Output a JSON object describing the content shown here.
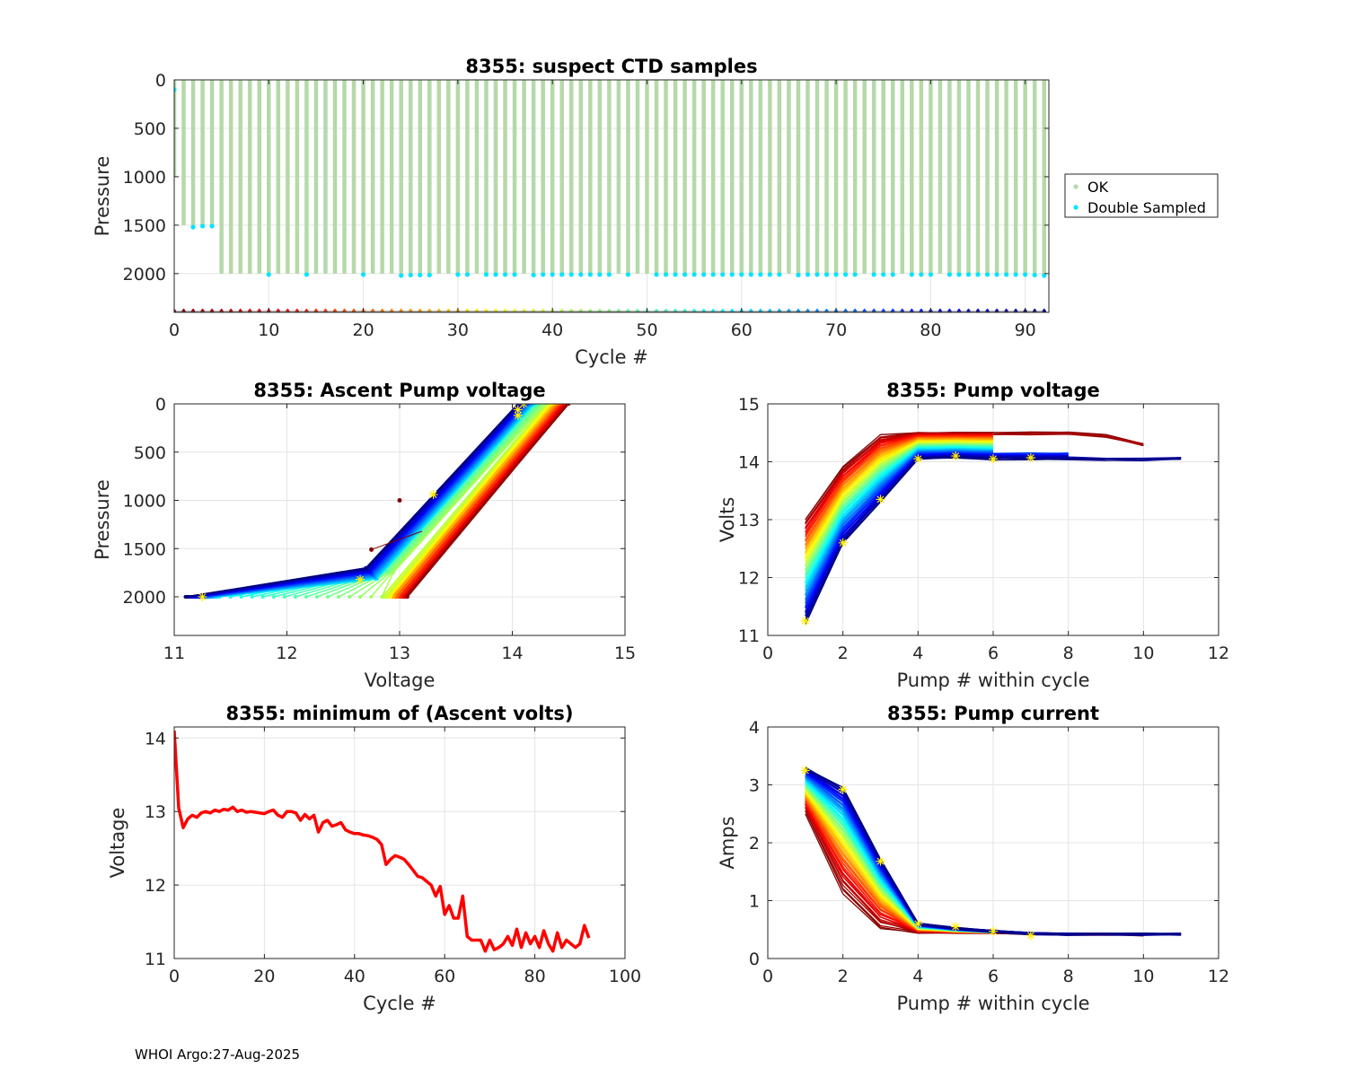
{
  "footer": "WHOI Argo:27-Aug-2025",
  "colors": {
    "ok": "#b5d9a8",
    "double": "#00e5ff",
    "marker": "#ffee00",
    "min_volts": "#ff0000",
    "grid": "#e4e4e4"
  },
  "chart_data": [
    {
      "id": "ctd",
      "type": "scatter",
      "title": "8355: suspect CTD samples",
      "xlabel": "Cycle #",
      "ylabel": "Pressure",
      "xlim": [
        0,
        92.5
      ],
      "ylim": [
        0,
        2400
      ],
      "y_reversed": true,
      "xticks": [
        0,
        10,
        20,
        30,
        40,
        50,
        60,
        70,
        80,
        90
      ],
      "yticks": [
        0,
        500,
        1000,
        1500,
        2000
      ],
      "legend": {
        "position": "right",
        "entries": [
          "OK",
          "Double Sampled"
        ]
      },
      "series": [
        {
          "name": "OK",
          "description": "profile depths per cycle",
          "profile_max_pressure": {
            "cycle_0": 1000,
            "cycles_1_to_4": 1500,
            "cycles_5_to_92": 2000
          }
        },
        {
          "name": "Double Sampled",
          "points": [
            [
              0,
              100
            ],
            [
              2,
              1520
            ],
            [
              3,
              1510
            ],
            [
              4,
              1510
            ],
            [
              10,
              2010
            ],
            [
              14,
              2010
            ],
            [
              20,
              2010
            ],
            [
              24,
              2020
            ],
            [
              25,
              2015
            ],
            [
              26,
              2015
            ],
            [
              27,
              2015
            ],
            [
              30,
              2010
            ],
            [
              31,
              2010
            ],
            [
              33,
              2010
            ],
            [
              34,
              2010
            ],
            [
              35,
              2010
            ],
            [
              36,
              2010
            ],
            [
              38,
              2015
            ],
            [
              39,
              2010
            ],
            [
              40,
              2010
            ],
            [
              41,
              2010
            ],
            [
              42,
              2010
            ],
            [
              43,
              2010
            ],
            [
              44,
              2010
            ],
            [
              45,
              2010
            ],
            [
              46,
              2010
            ],
            [
              48,
              2010
            ],
            [
              51,
              2010
            ],
            [
              52,
              2010
            ],
            [
              53,
              2010
            ],
            [
              54,
              2010
            ],
            [
              55,
              2010
            ],
            [
              56,
              2010
            ],
            [
              57,
              2010
            ],
            [
              58,
              2010
            ],
            [
              59,
              2010
            ],
            [
              60,
              2010
            ],
            [
              61,
              2010
            ],
            [
              62,
              2010
            ],
            [
              63,
              2010
            ],
            [
              64,
              2010
            ],
            [
              66,
              2015
            ],
            [
              67,
              2010
            ],
            [
              68,
              2010
            ],
            [
              69,
              2010
            ],
            [
              70,
              2010
            ],
            [
              71,
              2010
            ],
            [
              72,
              2010
            ],
            [
              74,
              2010
            ],
            [
              75,
              2010
            ],
            [
              76,
              2010
            ],
            [
              78,
              2010
            ],
            [
              79,
              2010
            ],
            [
              80,
              2010
            ],
            [
              82,
              2010
            ],
            [
              83,
              2010
            ],
            [
              84,
              2010
            ],
            [
              85,
              2010
            ],
            [
              86,
              2010
            ],
            [
              87,
              2010
            ],
            [
              88,
              2010
            ],
            [
              89,
              2010
            ],
            [
              90,
              2010
            ],
            [
              91,
              2015
            ],
            [
              92,
              2020
            ]
          ]
        }
      ],
      "cycle_markers_pressure": 2390
    },
    {
      "id": "ascent",
      "type": "line",
      "title": "8355: Ascent Pump voltage",
      "xlabel": "Voltage",
      "ylabel": "Pressure",
      "xlim": [
        11,
        15
      ],
      "ylim": [
        0,
        2400
      ],
      "y_reversed": true,
      "xticks": [
        11,
        12,
        13,
        14,
        15
      ],
      "yticks": [
        0,
        500,
        1000,
        1500,
        2000
      ],
      "model": "one colored line per cycle; voltage rises as pressure decreases",
      "cycle_groups": [
        {
          "label": "late cycles",
          "v_at_2000": 11.1,
          "v_at_1700": 12.8,
          "v_at_0": 14.05
        },
        {
          "label": "early cycles",
          "v_at_2000": 13.05,
          "v_at_0": 14.5
        }
      ],
      "outliers": [
        [
          13.0,
          1000
        ],
        [
          12.75,
          1510
        ]
      ],
      "markers": [
        [
          11.25,
          2000
        ],
        [
          12.65,
          1820
        ],
        [
          13.3,
          940
        ],
        [
          14.05,
          60
        ],
        [
          14.05,
          120
        ],
        [
          14.1,
          0
        ]
      ]
    },
    {
      "id": "pumpv",
      "type": "line",
      "title": "8355: Pump voltage",
      "xlabel": "Pump # within cycle",
      "ylabel": "Volts",
      "xlim": [
        0,
        12
      ],
      "ylim": [
        11,
        15
      ],
      "xticks": [
        0,
        2,
        4,
        6,
        8,
        10,
        12
      ],
      "yticks": [
        11,
        12,
        13,
        14,
        15
      ],
      "early_cycle_curve": {
        "x": [
          1,
          2,
          3,
          4,
          5,
          6,
          7,
          8,
          9,
          10
        ],
        "y": [
          13.0,
          13.9,
          14.45,
          14.5,
          14.5,
          14.5,
          14.5,
          14.5,
          14.45,
          14.3
        ]
      },
      "late_cycle_curve": {
        "x": [
          1,
          2,
          3,
          4,
          5,
          6,
          7,
          8,
          9,
          10,
          11
        ],
        "y": [
          11.2,
          12.6,
          13.3,
          14.05,
          14.07,
          14.05,
          14.05,
          14.05,
          14.03,
          14.03,
          14.05
        ]
      },
      "markers": [
        [
          1,
          11.25
        ],
        [
          2,
          12.6
        ],
        [
          3,
          13.35
        ],
        [
          4,
          14.05
        ],
        [
          5,
          14.1
        ],
        [
          6,
          14.05
        ],
        [
          7,
          14.07
        ]
      ]
    },
    {
      "id": "minv",
      "type": "line",
      "title": "8355: minimum of (Ascent volts)",
      "xlabel": "Cycle #",
      "ylabel": "Voltage",
      "xlim": [
        0,
        100
      ],
      "ylim": [
        11,
        14.15
      ],
      "xticks": [
        0,
        20,
        40,
        60,
        80,
        100
      ],
      "yticks": [
        11,
        12,
        13,
        14
      ],
      "x": [
        0,
        1,
        2,
        3,
        4,
        5,
        6,
        7,
        8,
        9,
        10,
        11,
        12,
        13,
        14,
        15,
        16,
        17,
        18,
        19,
        20,
        21,
        22,
        23,
        24,
        25,
        26,
        27,
        28,
        29,
        30,
        31,
        32,
        33,
        34,
        35,
        36,
        37,
        38,
        39,
        40,
        41,
        42,
        43,
        44,
        45,
        46,
        47,
        48,
        49,
        50,
        51,
        52,
        53,
        54,
        55,
        56,
        57,
        58,
        59,
        60,
        61,
        62,
        63,
        64,
        65,
        66,
        67,
        68,
        69,
        70,
        71,
        72,
        73,
        74,
        75,
        76,
        77,
        78,
        79,
        80,
        81,
        82,
        83,
        84,
        85,
        86,
        87,
        88,
        89,
        90,
        91,
        92
      ],
      "values": [
        14.1,
        13.05,
        12.78,
        12.9,
        12.95,
        12.92,
        12.98,
        13.0,
        12.98,
        13.02,
        13.0,
        13.03,
        13.02,
        13.06,
        13.0,
        13.02,
        12.99,
        13.0,
        12.99,
        12.98,
        12.97,
        13.0,
        13.02,
        12.95,
        12.92,
        13.0,
        13.0,
        12.98,
        12.88,
        12.96,
        12.9,
        12.95,
        12.72,
        12.85,
        12.88,
        12.8,
        12.82,
        12.85,
        12.75,
        12.72,
        12.7,
        12.7,
        12.68,
        12.67,
        12.65,
        12.62,
        12.55,
        12.28,
        12.35,
        12.4,
        12.38,
        12.35,
        12.28,
        12.2,
        12.12,
        12.1,
        12.05,
        12.0,
        11.85,
        11.98,
        11.6,
        11.72,
        11.55,
        11.55,
        11.85,
        11.3,
        11.25,
        11.25,
        11.25,
        11.1,
        11.25,
        11.12,
        11.15,
        11.2,
        11.3,
        11.18,
        11.4,
        11.15,
        11.35,
        11.2,
        11.3,
        11.15,
        11.38,
        11.2,
        11.1,
        11.35,
        11.15,
        11.25,
        11.2,
        11.15,
        11.2,
        11.45,
        11.28
      ]
    },
    {
      "id": "pumpc",
      "type": "line",
      "title": "8355: Pump current",
      "xlabel": "Pump # within cycle",
      "ylabel": "Amps",
      "xlim": [
        0,
        12
      ],
      "ylim": [
        0,
        4
      ],
      "xticks": [
        0,
        2,
        4,
        6,
        8,
        10,
        12
      ],
      "yticks": [
        0,
        1,
        2,
        3,
        4
      ],
      "early_cycle_curve": {
        "x": [
          1,
          2,
          3,
          4,
          5,
          6,
          7,
          8,
          9,
          10
        ],
        "y": [
          2.5,
          1.1,
          0.5,
          0.45,
          0.45,
          0.45,
          0.43,
          0.42,
          0.42,
          0.41
        ]
      },
      "late_cycle_curve": {
        "x": [
          1,
          2,
          3,
          4,
          5,
          6,
          7,
          8,
          9,
          10,
          11
        ],
        "y": [
          3.3,
          2.95,
          1.7,
          0.6,
          0.52,
          0.47,
          0.43,
          0.42,
          0.42,
          0.42,
          0.42
        ]
      },
      "markers": [
        [
          1,
          3.25
        ],
        [
          2,
          2.92
        ],
        [
          3,
          1.68
        ],
        [
          4,
          0.6
        ],
        [
          5,
          0.55
        ],
        [
          6,
          0.47
        ],
        [
          7,
          0.4
        ]
      ]
    }
  ]
}
